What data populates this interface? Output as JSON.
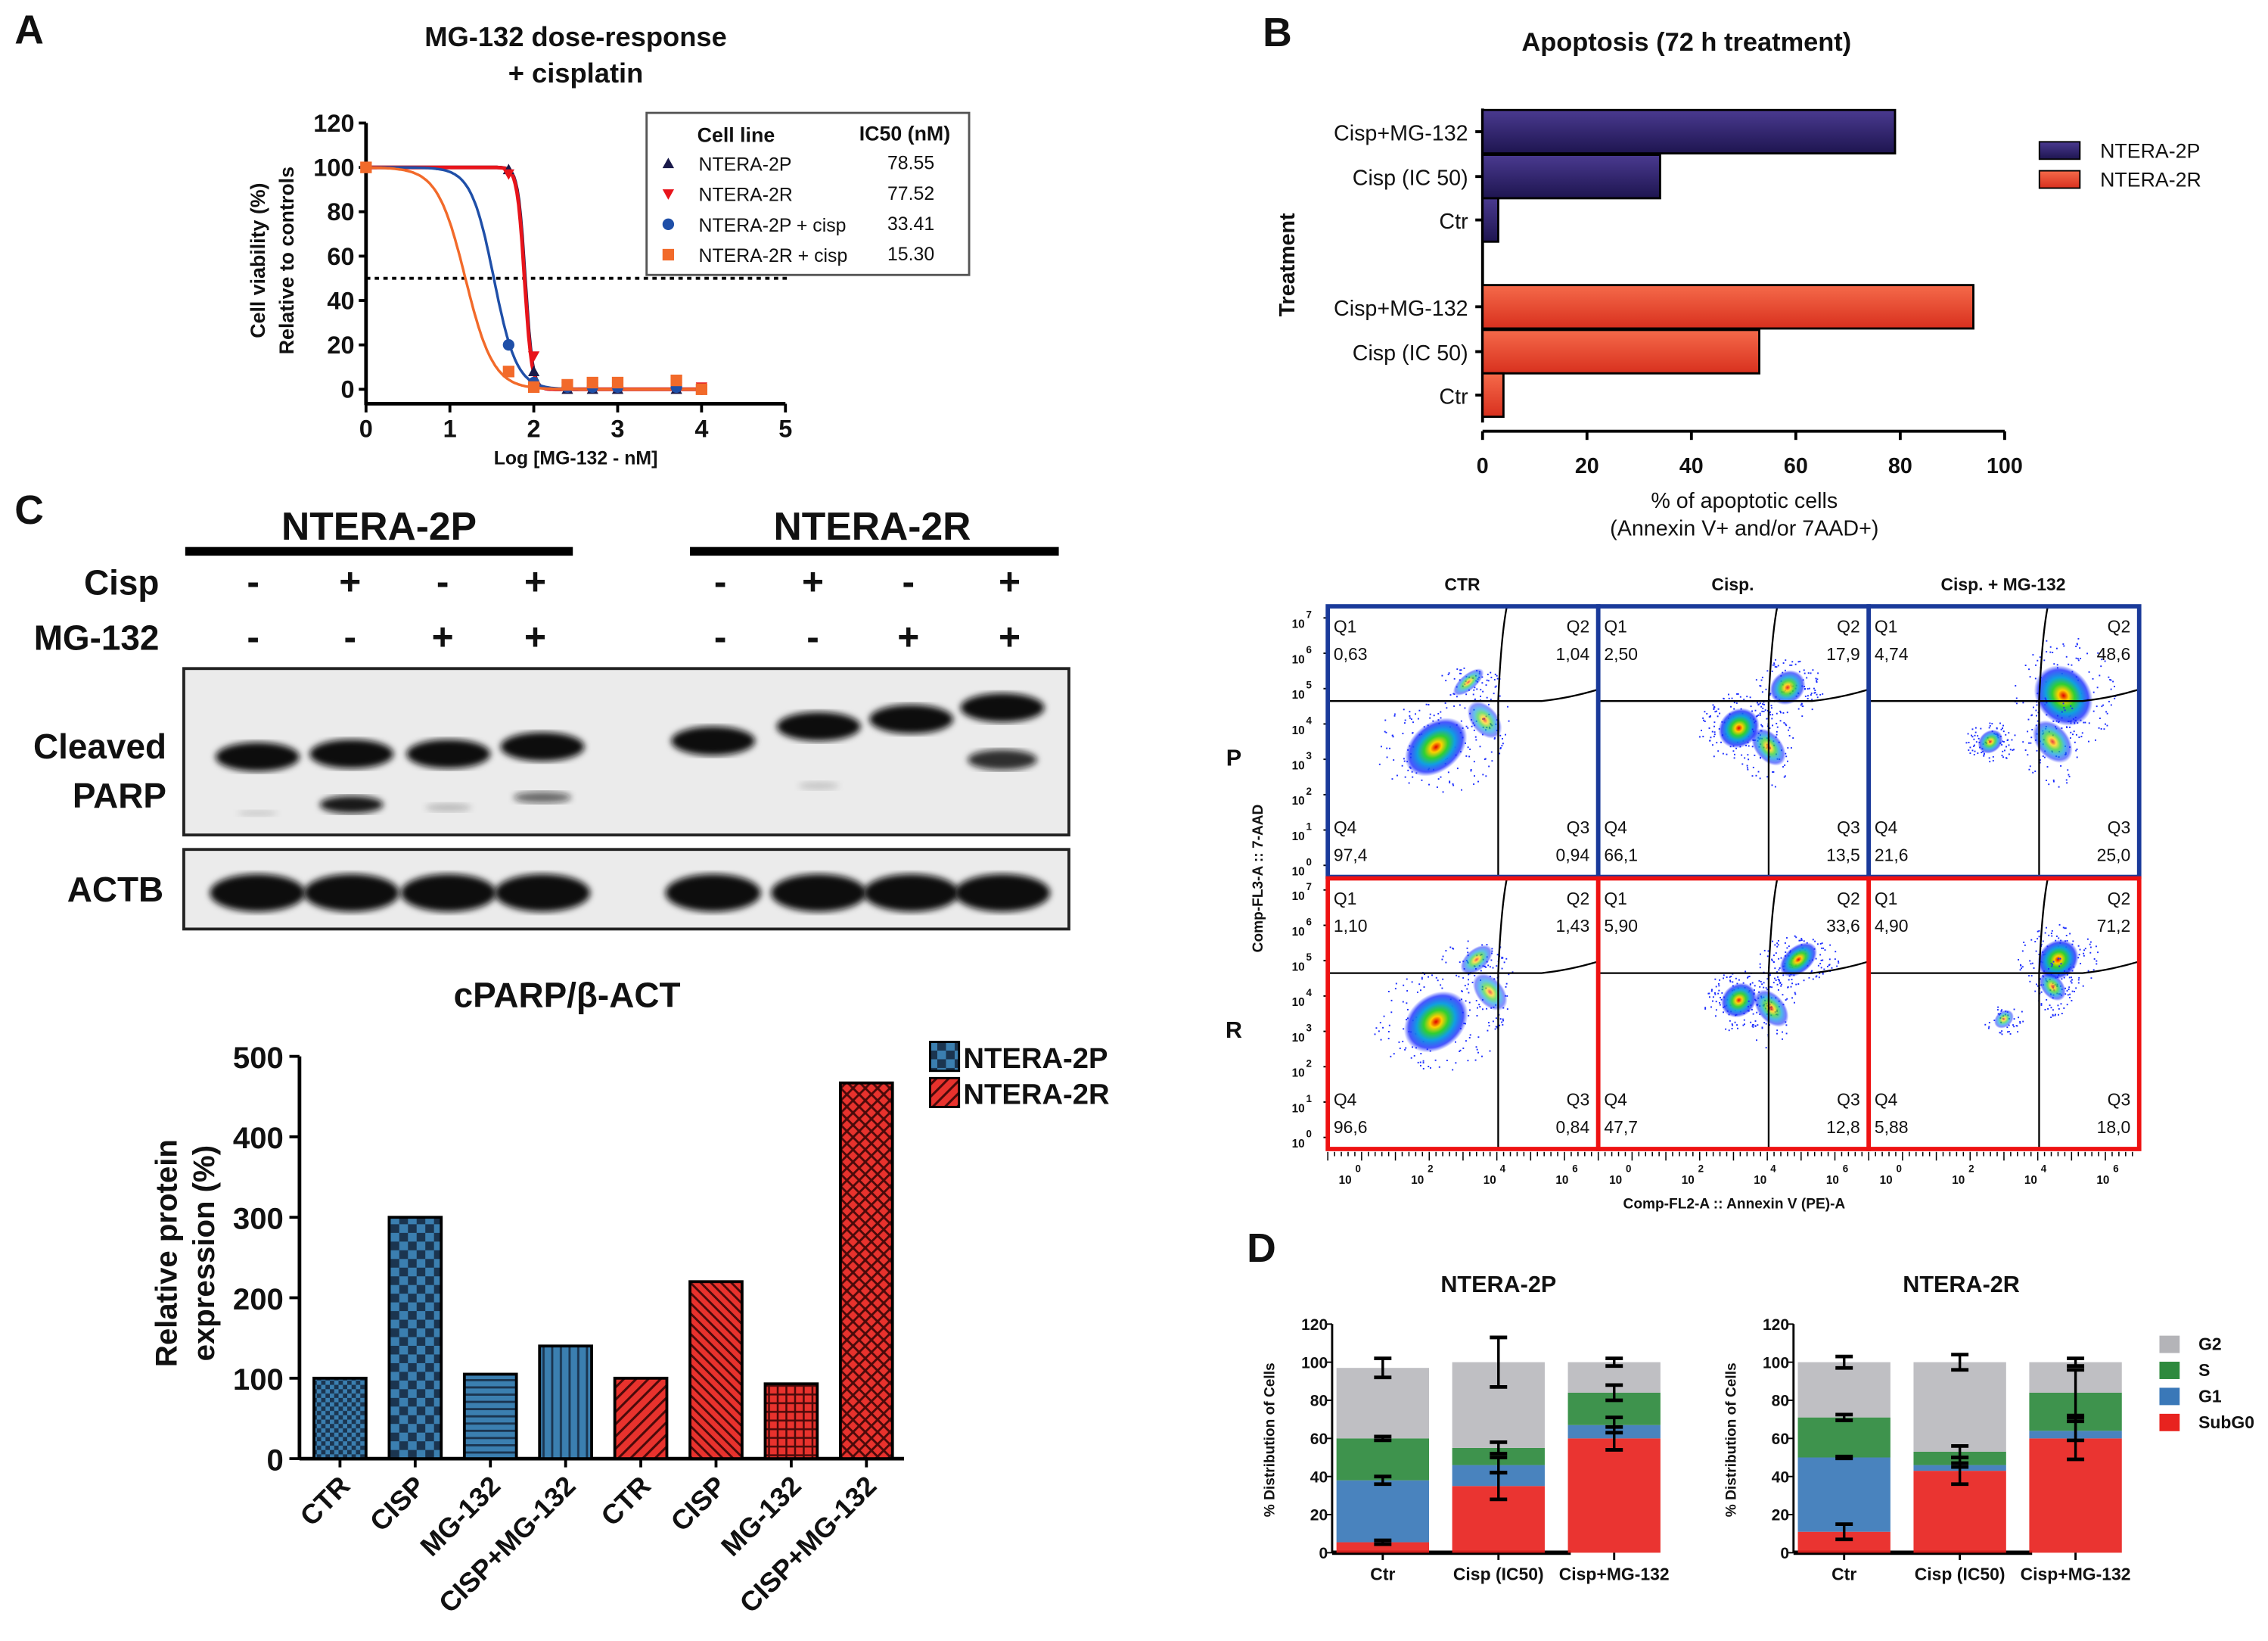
{
  "panel_labels": {
    "a": "A",
    "b": "B",
    "c": "C",
    "d": "D"
  },
  "chart_data": [
    {
      "type": "line",
      "title": [
        "MG-132 dose-response",
        "+ cisplatin"
      ],
      "xlabel": "Log [MG-132 - nM]",
      "ylabel": [
        "Cell viability (%)",
        "Relative to controls"
      ],
      "xlim": [
        0,
        5
      ],
      "ylim": [
        0,
        120
      ],
      "xticks": [
        "0",
        "1",
        "2",
        "3",
        "4",
        "5"
      ],
      "yticks": [
        "0",
        "20",
        "40",
        "60",
        "80",
        "100",
        "120"
      ],
      "reference_line": {
        "y": 50,
        "style": "dotted"
      },
      "legend": {
        "header_name": "Cell line",
        "header_value": "IC50 (nM)",
        "placement": "top-right"
      },
      "x": [
        0,
        1.7,
        2,
        2.4,
        2.7,
        3,
        3.7,
        4
      ],
      "series": [
        {
          "name": "NTERA-2P",
          "ic50": "78.55",
          "marker": "triangle-up",
          "color": "#1a1a4a",
          "values": [
            100,
            99,
            8,
            0,
            0,
            0,
            0,
            0
          ]
        },
        {
          "name": "NTERA-2R",
          "ic50": "77.52",
          "marker": "triangle-down",
          "color": "#e8141b",
          "values": [
            100,
            97,
            15,
            1,
            1,
            1,
            1,
            1
          ]
        },
        {
          "name": "NTERA-2P + cisp",
          "ic50": "33.41",
          "marker": "circle",
          "color": "#1f4fa8",
          "values": [
            100,
            20,
            3,
            1,
            1,
            1,
            1,
            0
          ]
        },
        {
          "name": "NTERA-2R + cisp",
          "ic50": "15.30",
          "marker": "square",
          "color": "#f26a2a",
          "values": [
            100,
            8,
            1,
            2,
            3,
            3,
            4,
            0
          ]
        }
      ]
    },
    {
      "type": "bar",
      "orientation": "horizontal",
      "title": "Apoptosis (72 h treatment)",
      "ylabel": "Treatment",
      "xlabel": [
        "% of apoptotic cells",
        "(Annexin V+ and/or 7AAD+)"
      ],
      "xlim": [
        0,
        100
      ],
      "xticks": [
        "0",
        "20",
        "40",
        "60",
        "80",
        "100"
      ],
      "categories": [
        "Cisp+MG-132",
        "Cisp (IC 50)",
        "Ctr"
      ],
      "legend_placement": "right",
      "series": [
        {
          "name": "NTERA-2P",
          "color": "#2e2466",
          "values": [
            79,
            34,
            3
          ]
        },
        {
          "name": "NTERA-2R",
          "color": "#e8402a",
          "values": [
            94,
            53,
            4
          ]
        }
      ]
    },
    {
      "type": "bar",
      "title": "cPARP/β-ACT",
      "ylabel": [
        "Relative protein",
        "expression (%)"
      ],
      "ylim": [
        0,
        500
      ],
      "yticks": [
        "0",
        "100",
        "200",
        "300",
        "400",
        "500"
      ],
      "categories": [
        "CTR",
        "CISP",
        "MG-132",
        "CISP+MG-132",
        "CTR",
        "CISP",
        "MG-132",
        "CISP+MG-132"
      ],
      "values": [
        100,
        300,
        105,
        140,
        100,
        220,
        93,
        467
      ],
      "groups": [
        "NTERA-2P",
        "NTERA-2P",
        "NTERA-2P",
        "NTERA-2P",
        "NTERA-2R",
        "NTERA-2R",
        "NTERA-2R",
        "NTERA-2R"
      ],
      "legend": [
        {
          "name": "NTERA-2P",
          "color": "#3b7fb0"
        },
        {
          "name": "NTERA-2R",
          "color": "#e8322d"
        }
      ],
      "legend_placement": "top-right"
    },
    {
      "type": "scatter",
      "subtype": "flow-cytometry-quadrants",
      "columns": [
        "CTR",
        "Cisp.",
        "Cisp. + MG-132"
      ],
      "rows": [
        {
          "label": "P",
          "color": "#1a3a9a",
          "quadrants": [
            {
              "Q1": "0,63",
              "Q2": "1,04",
              "Q3": "0,94",
              "Q4": "97,4"
            },
            {
              "Q1": "2,50",
              "Q2": "17,9",
              "Q3": "13,5",
              "Q4": "66,1"
            },
            {
              "Q1": "4,74",
              "Q2": "48,6",
              "Q3": "25,0",
              "Q4": "21,6"
            }
          ]
        },
        {
          "label": "R",
          "color": "#ee1111",
          "quadrants": [
            {
              "Q1": "1,10",
              "Q2": "1,43",
              "Q3": "0,84",
              "Q4": "96,6"
            },
            {
              "Q1": "5,90",
              "Q2": "33,6",
              "Q3": "12,8",
              "Q4": "47,7"
            },
            {
              "Q1": "4,90",
              "Q2": "71,2",
              "Q3": "18,0",
              "Q4": "5,88"
            }
          ]
        }
      ],
      "quadrant_names": [
        "Q1",
        "Q2",
        "Q3",
        "Q4"
      ],
      "xlabel": "Comp-FL2-A :: Annexin V (PE)-A",
      "ylabel": "Comp-FL3-A :: 7-AAD",
      "tick_base": "10",
      "xtick_exponents": [
        "0",
        "2",
        "4",
        "6"
      ],
      "ytick_exponents": [
        "7",
        "6",
        "5",
        "4",
        "3",
        "2",
        "1",
        "0"
      ],
      "scale": "log"
    },
    {
      "type": "bar",
      "stacked": true,
      "title": "NTERA-2P",
      "ylabel": "% Distribution of Cells",
      "ylim": [
        0,
        120
      ],
      "yticks": [
        "0",
        "20",
        "40",
        "60",
        "80",
        "100",
        "120"
      ],
      "categories": [
        "Ctr",
        "Cisp (IC50)",
        "Cisp+MG-132"
      ],
      "series": [
        {
          "name": "SubG0",
          "color": "#e8231f",
          "values": [
            5.5,
            35,
            60
          ],
          "errors": [
            1,
            7,
            6
          ]
        },
        {
          "name": "G1",
          "color": "#3a78b8",
          "values": [
            32.5,
            11,
            7
          ],
          "errors": [
            2,
            4,
            4
          ]
        },
        {
          "name": "S",
          "color": "#2e8a3e",
          "values": [
            22,
            9,
            17
          ],
          "errors": [
            1,
            3,
            4
          ]
        },
        {
          "name": "G2",
          "color": "#b4b4b8",
          "values": [
            37,
            45,
            16
          ],
          "errors": [
            5,
            13,
            2
          ]
        }
      ]
    },
    {
      "type": "bar",
      "stacked": true,
      "title": "NTERA-2R",
      "ylabel": "% Distribution of Cells",
      "ylim": [
        0,
        120
      ],
      "yticks": [
        "0",
        "20",
        "40",
        "60",
        "80",
        "100",
        "120"
      ],
      "categories": [
        "Ctr",
        "Cisp (IC50)",
        "Cisp+MG-132"
      ],
      "legend_placement": "right",
      "series": [
        {
          "name": "SubG0",
          "color": "#e8231f",
          "values": [
            11,
            43,
            60
          ],
          "errors": [
            4,
            7,
            11
          ]
        },
        {
          "name": "G1",
          "color": "#3a78b8",
          "values": [
            39,
            3,
            4
          ],
          "errors": [
            0.5,
            1,
            5
          ]
        },
        {
          "name": "S",
          "color": "#2e8a3e",
          "values": [
            21,
            7,
            20
          ],
          "errors": [
            1.5,
            3,
            12
          ]
        },
        {
          "name": "G2",
          "color": "#b4b4b8",
          "values": [
            29,
            47,
            16
          ],
          "errors": [
            3,
            4,
            2
          ]
        }
      ]
    }
  ],
  "western_blot": {
    "groups": [
      {
        "name": "NTERA-2P",
        "color": "#1f3fbf"
      },
      {
        "name": "NTERA-2R",
        "color": "#e8141b"
      }
    ],
    "rows": [
      {
        "label": "Cisp",
        "signs": [
          "-",
          "+",
          "-",
          "+",
          "-",
          "+",
          "-",
          "+"
        ]
      },
      {
        "label": "MG-132",
        "signs": [
          "-",
          "-",
          "+",
          "+",
          "-",
          "-",
          "+",
          "+"
        ]
      }
    ],
    "blots": [
      {
        "label": [
          "Cleaved",
          "PARP"
        ]
      },
      {
        "label": [
          "ACTB"
        ]
      }
    ]
  }
}
